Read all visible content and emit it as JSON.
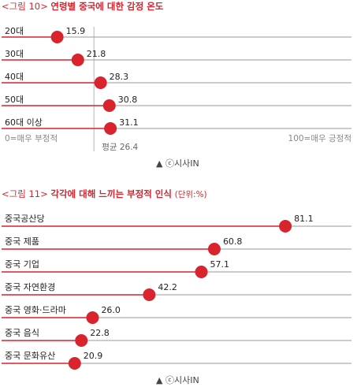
{
  "credit": "▲ ⓒ시사IN",
  "chart_data": [
    {
      "type": "dot",
      "title_fig": "<그림 10>",
      "title_main": "연령별 중국에 대한 감정 온도",
      "xlim": [
        0,
        100
      ],
      "categories": [
        "20대",
        "30대",
        "40대",
        "50대",
        "60대 이상"
      ],
      "values": [
        15.9,
        21.8,
        28.3,
        30.8,
        31.1
      ],
      "average": 26.4,
      "average_label": "평균 26.4",
      "min_label": "0=매우 부정적",
      "max_label": "100=매우 긍정적",
      "colors": {
        "accent": "#d9232d",
        "line": "#9a9a9a"
      }
    },
    {
      "type": "dot",
      "title_fig": "<그림 11>",
      "title_main": "각각에 대해 느끼는 부정적 인식",
      "title_unit": "(단위:%)",
      "xlim": [
        0,
        100
      ],
      "categories": [
        "중국공산당",
        "중국 제품",
        "중국 기업",
        "중국 자연환경",
        "중국 영화·드라마",
        "중국 음식",
        "중국 문화유산"
      ],
      "values": [
        81.1,
        60.8,
        57.1,
        42.2,
        26.0,
        22.8,
        20.9
      ],
      "colors": {
        "accent": "#d9232d",
        "line": "#9a9a9a"
      }
    }
  ]
}
